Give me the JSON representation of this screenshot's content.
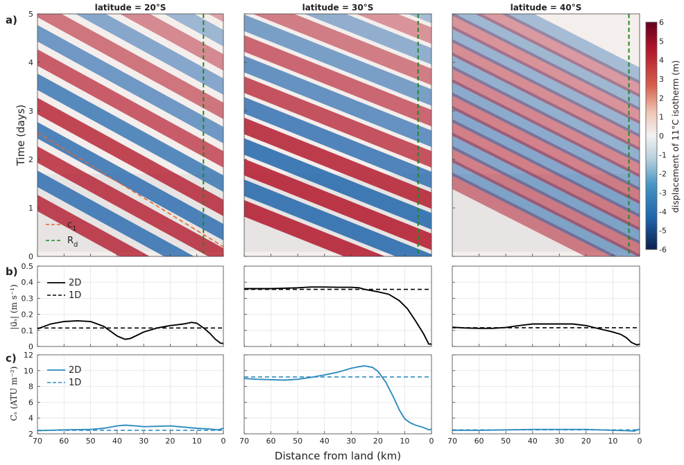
{
  "colors": {
    "positive": "#b2182b",
    "negative": "#2166ac",
    "c1_line": "#e8642b",
    "rd_line": "#1e8a1e",
    "series_2d_b": "#000000",
    "series_2d_c": "#2e8bbf"
  },
  "panel_labels": {
    "a": "a)",
    "b": "b)",
    "c": "c)"
  },
  "column_titles": [
    "latitude = 20°S",
    "latitude = 30°S",
    "latitude = 40°S"
  ],
  "axes": {
    "a_ylabel": "Time (days)",
    "b_ylabel": "|u⃗ₛ| (m s⁻¹)",
    "c_ylabel": "Cₛ (ATU m⁻²)",
    "xlabel": "Distance from land (km)",
    "colorbar_label": "displacement of 11°C isotherm (m)"
  },
  "legends": {
    "a": [
      "c",
      "R"
    ],
    "a_sub": [
      "1",
      "d"
    ],
    "b": [
      "2D",
      "1D"
    ],
    "c": [
      "2D",
      "1D"
    ]
  },
  "ticks": {
    "x": [
      "70",
      "60",
      "50",
      "40",
      "30",
      "20",
      "10",
      "0"
    ],
    "a_y": [
      "0",
      "1",
      "2",
      "3",
      "4",
      "5"
    ],
    "b_y": [
      "0",
      "0.1",
      "0.2",
      "0.3",
      "0.4",
      "0.5"
    ],
    "c_y": [
      "2",
      "4",
      "6",
      "8",
      "10",
      "12"
    ],
    "colorbar": [
      "6",
      "5",
      "4",
      "3",
      "2",
      "1",
      "0",
      "-1",
      "-2",
      "-3",
      "-4",
      "-5",
      "-6"
    ]
  },
  "chart_data": [
    {
      "type": "heatmap",
      "panel": "a",
      "title": "latitude = 20°S",
      "xlabel": "",
      "ylabel": "Time (days)",
      "xlim": [
        70,
        0
      ],
      "ylim": [
        0,
        5
      ],
      "colorbar": {
        "label": "displacement of 11°C isotherm (m)",
        "range": [
          -6,
          6
        ]
      },
      "rd_km": 7.5,
      "c1_line": {
        "x": [
          70,
          0
        ],
        "y": [
          2.55,
          0.2
        ]
      }
    },
    {
      "type": "heatmap",
      "panel": "a",
      "title": "latitude = 30°S",
      "xlim": [
        70,
        0
      ],
      "ylim": [
        0,
        5
      ],
      "rd_km": 5
    },
    {
      "type": "heatmap",
      "panel": "a",
      "title": "latitude = 40°S",
      "xlim": [
        70,
        0
      ],
      "ylim": [
        0,
        5
      ],
      "rd_km": 4
    },
    {
      "type": "line",
      "panel": "b",
      "xlim": [
        70,
        0
      ],
      "ylim": [
        0,
        0.5
      ],
      "series": [
        {
          "name": "2D",
          "x": [
            70,
            65,
            60,
            55,
            50,
            45,
            40,
            37,
            35,
            30,
            25,
            20,
            15,
            12,
            10,
            7,
            5,
            3,
            1,
            0
          ],
          "y": [
            0.11,
            0.14,
            0.155,
            0.16,
            0.155,
            0.125,
            0.065,
            0.045,
            0.05,
            0.09,
            0.115,
            0.13,
            0.14,
            0.15,
            0.145,
            0.11,
            0.08,
            0.045,
            0.02,
            0.02
          ]
        },
        {
          "name": "1D",
          "x": [
            70,
            0
          ],
          "y": [
            0.115,
            0.115
          ]
        }
      ]
    },
    {
      "type": "line",
      "panel": "b",
      "xlim": [
        70,
        0
      ],
      "ylim": [
        0,
        0.5
      ],
      "series": [
        {
          "name": "2D",
          "x": [
            70,
            60,
            50,
            45,
            40,
            35,
            30,
            27,
            25,
            20,
            16,
            12,
            9,
            6,
            3,
            1,
            0
          ],
          "y": [
            0.36,
            0.36,
            0.365,
            0.37,
            0.37,
            0.368,
            0.368,
            0.365,
            0.355,
            0.34,
            0.325,
            0.285,
            0.235,
            0.16,
            0.08,
            0.015,
            0.015
          ]
        },
        {
          "name": "1D",
          "x": [
            70,
            0
          ],
          "y": [
            0.355,
            0.355
          ]
        }
      ]
    },
    {
      "type": "line",
      "panel": "b",
      "xlim": [
        70,
        0
      ],
      "ylim": [
        0,
        0.5
      ],
      "series": [
        {
          "name": "2D",
          "x": [
            70,
            65,
            60,
            55,
            50,
            45,
            40,
            35,
            30,
            25,
            20,
            15,
            10,
            7,
            5,
            3,
            1,
            0
          ],
          "y": [
            0.12,
            0.115,
            0.113,
            0.113,
            0.118,
            0.13,
            0.14,
            0.14,
            0.14,
            0.14,
            0.13,
            0.11,
            0.09,
            0.075,
            0.055,
            0.025,
            0.01,
            0.015
          ]
        },
        {
          "name": "1D",
          "x": [
            70,
            0
          ],
          "y": [
            0.117,
            0.117
          ]
        }
      ]
    },
    {
      "type": "line",
      "panel": "c",
      "xlim": [
        70,
        0
      ],
      "ylim": [
        2,
        12
      ],
      "series": [
        {
          "name": "2D",
          "x": [
            70,
            60,
            50,
            45,
            40,
            37,
            33,
            30,
            25,
            20,
            15,
            10,
            5,
            2,
            0
          ],
          "y": [
            2.4,
            2.5,
            2.55,
            2.7,
            3.0,
            3.1,
            3.0,
            2.9,
            2.95,
            3.0,
            2.85,
            2.7,
            2.6,
            2.5,
            2.7
          ]
        },
        {
          "name": "1D",
          "x": [
            70,
            0
          ],
          "y": [
            2.45,
            2.45
          ]
        }
      ]
    },
    {
      "type": "line",
      "panel": "c",
      "xlim": [
        70,
        0
      ],
      "ylim": [
        2,
        12
      ],
      "series": [
        {
          "name": "2D",
          "x": [
            70,
            65,
            60,
            55,
            50,
            45,
            40,
            35,
            30,
            27,
            25,
            22,
            20,
            17,
            14,
            12,
            10,
            8,
            6,
            3,
            1,
            0
          ],
          "y": [
            9.0,
            8.9,
            8.85,
            8.8,
            8.9,
            9.15,
            9.45,
            9.8,
            10.3,
            10.5,
            10.6,
            10.4,
            9.9,
            8.5,
            6.5,
            5.0,
            3.9,
            3.4,
            3.1,
            2.8,
            2.5,
            2.6
          ]
        },
        {
          "name": "1D",
          "x": [
            70,
            0
          ],
          "y": [
            9.2,
            9.2
          ]
        }
      ]
    },
    {
      "type": "line",
      "panel": "c",
      "xlim": [
        70,
        0
      ],
      "ylim": [
        2,
        12
      ],
      "series": [
        {
          "name": "2D",
          "x": [
            70,
            60,
            50,
            40,
            30,
            20,
            10,
            5,
            2,
            0
          ],
          "y": [
            2.45,
            2.45,
            2.5,
            2.55,
            2.55,
            2.55,
            2.45,
            2.4,
            2.35,
            2.6
          ]
        },
        {
          "name": "1D",
          "x": [
            70,
            0
          ],
          "y": [
            2.5,
            2.5
          ]
        }
      ]
    }
  ]
}
